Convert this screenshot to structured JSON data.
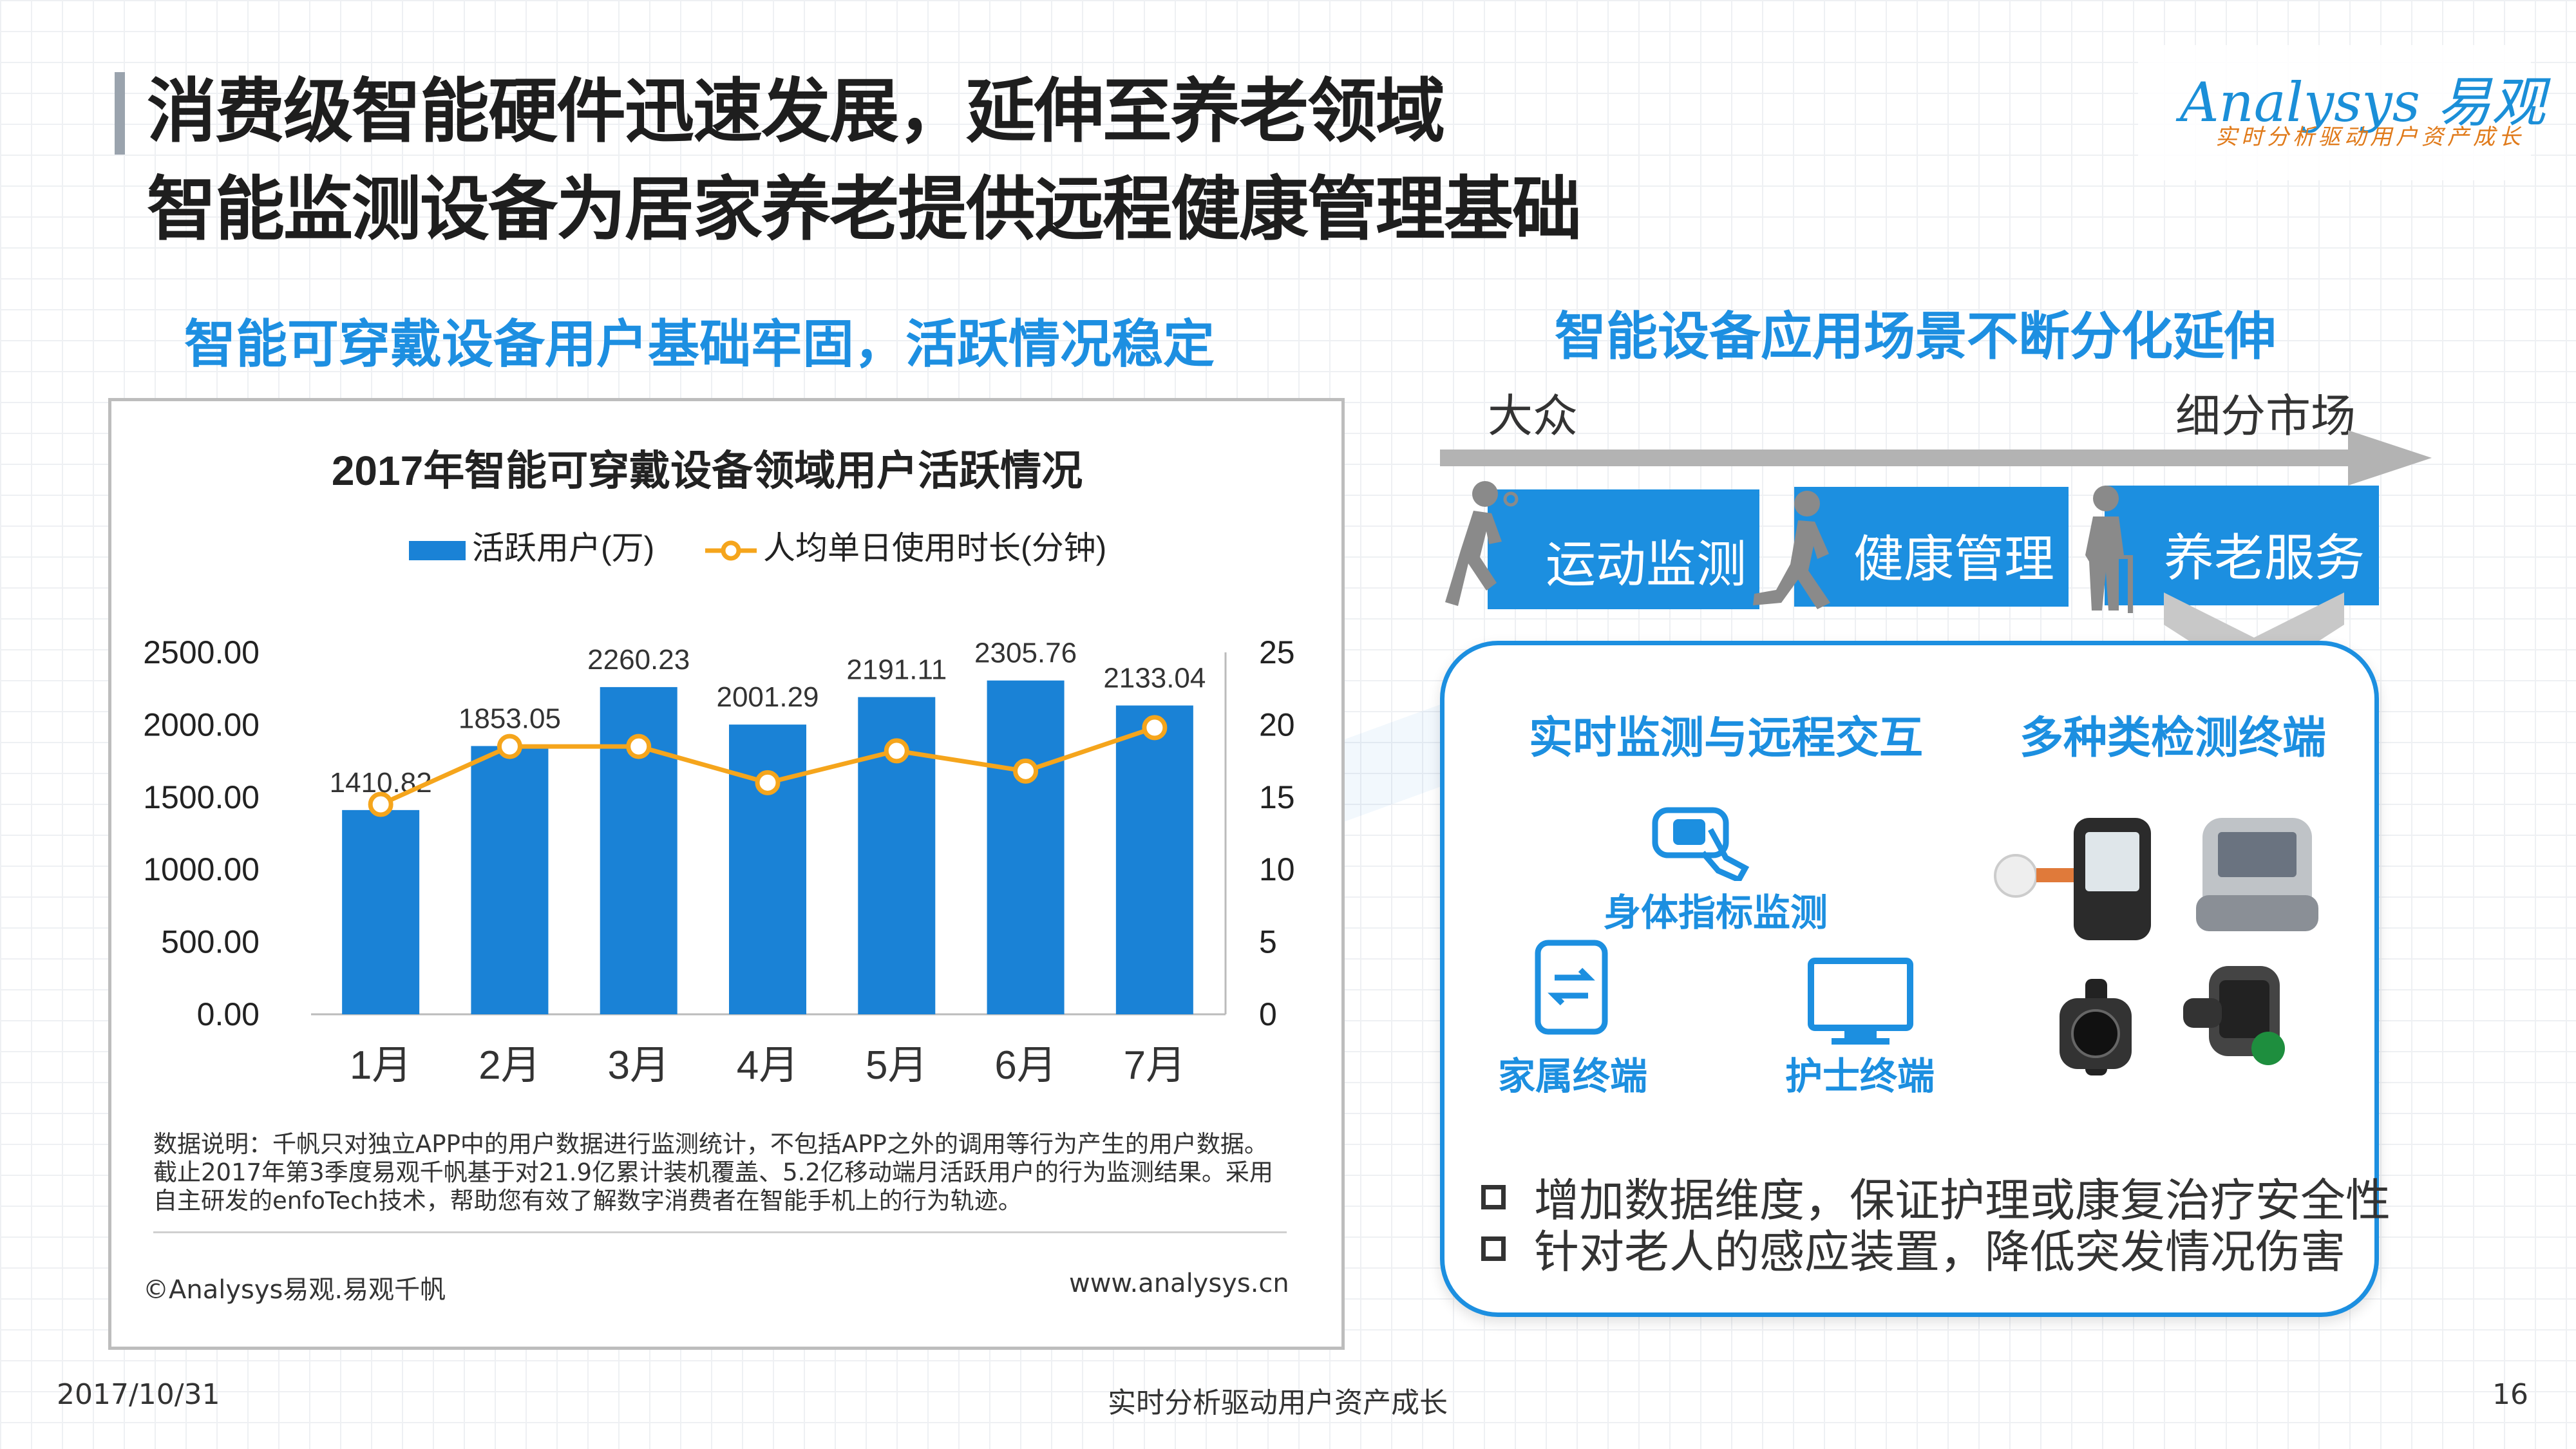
{
  "header": {
    "title_line1": "消费级智能硬件迅速发展，延伸至养老领域",
    "title_line2": "智能监测设备为居家养老提供远程健康管理基础"
  },
  "logo": {
    "brand": "Analysys 易观",
    "tagline": "实时分析驱动用户资产成长"
  },
  "left": {
    "section_title": "智能可穿戴设备用户基础牢固，活跃情况稳定",
    "note_lines": [
      "数据说明：千帆只对独立APP中的用户数据进行监测统计，不包括APP之外的调用等行为产生的用户数据。",
      "截止2017年第3季度易观千帆基于对21.9亿累计装机覆盖、5.2亿移动端月活跃用户的行为监测结果。采用",
      "自主研发的enfoTech技术，帮助您有效了解数字消费者在智能手机上的行为轨迹。"
    ],
    "source": "©Analysys易观.易观千帆",
    "website": "www.analysys.cn"
  },
  "chart_data": {
    "type": "bar",
    "title": "2017年智能可穿戴设备领域用户活跃情况",
    "categories": [
      "1月",
      "2月",
      "3月",
      "4月",
      "5月",
      "6月",
      "7月"
    ],
    "series": [
      {
        "name": "活跃用户(万)",
        "type": "bar",
        "axis": "left",
        "values": [
          1410.82,
          1853.05,
          2260.23,
          2001.29,
          2191.11,
          2305.76,
          2133.04
        ],
        "labels": [
          "1410.82",
          "1853.05",
          "2260.23",
          "2001.29",
          "2191.11",
          "2305.76",
          "2133.04"
        ]
      },
      {
        "name": "人均单日使用时长(分钟)",
        "type": "line",
        "axis": "right",
        "values": [
          14.5,
          18.5,
          18.5,
          16.0,
          18.2,
          16.8,
          19.8
        ]
      }
    ],
    "y_left": {
      "min": 0,
      "max": 2500,
      "ticks": [
        "0.00",
        "500.00",
        "1000.00",
        "1500.00",
        "2000.00",
        "2500.00"
      ]
    },
    "y_right": {
      "min": 0,
      "max": 25,
      "ticks": [
        "0",
        "5",
        "10",
        "15",
        "20",
        "25"
      ]
    },
    "grid": false,
    "legend": "top-center",
    "colors": {
      "bar": "#1a82d6",
      "line": "#f5a51c"
    }
  },
  "right": {
    "section_title": "智能设备应用场景不断分化延伸",
    "arrow_left": "大众",
    "arrow_right": "细分市场",
    "tabs": [
      "运动监测",
      "健康管理",
      "养老服务"
    ],
    "panel": {
      "heading_left": "实时监测与远程交互",
      "heading_right": "多种类检测终端",
      "icon_body": "身体指标监测",
      "icon_family": "家属终端",
      "icon_nurse": "护士终端",
      "bullets": [
        "增加数据维度，保证护理或康复治疗安全性",
        "针对老人的感应装置，降低突发情况伤害"
      ]
    }
  },
  "footer": {
    "date": "2017/10/31",
    "slogan": "实时分析驱动用户资产成长",
    "page": "16"
  }
}
